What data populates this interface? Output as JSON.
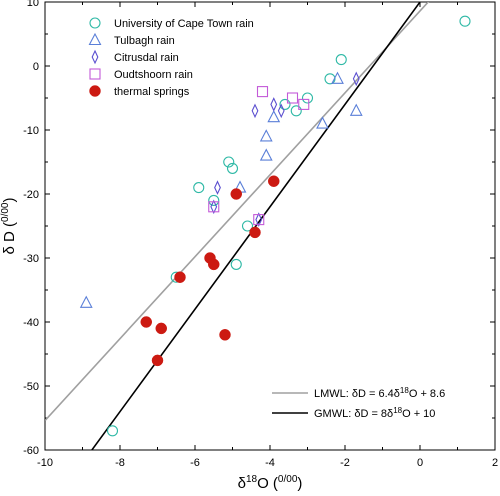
{
  "chart_data": {
    "type": "scatter",
    "xlabel_main": "δ",
    "xlabel_sup": "18",
    "xlabel_tail": "O (",
    "xlabel_unit": "0/00",
    "xlabel_close": ")",
    "ylabel_main": "δ D (",
    "ylabel_unit": "0/00",
    "ylabel_close": ")",
    "xlim": [
      -10,
      2
    ],
    "ylim": [
      -60,
      10
    ],
    "xticks": [
      -10,
      -8,
      -6,
      -4,
      -2,
      0,
      2
    ],
    "yticks": [
      -60,
      -50,
      -40,
      -30,
      -20,
      -10,
      0,
      10
    ],
    "grid": false,
    "legend_position": "top-left",
    "lines_legend_position": "bottom-right",
    "series": [
      {
        "name": "University of Cape Town rain",
        "marker": "circle-open",
        "color": "#2fb9a6",
        "points": [
          [
            1.2,
            7
          ],
          [
            -2.1,
            1
          ],
          [
            -2.4,
            -2
          ],
          [
            -3.6,
            -6
          ],
          [
            -3.3,
            -7
          ],
          [
            -3.0,
            -5
          ],
          [
            -5.1,
            -15
          ],
          [
            -5.0,
            -16
          ],
          [
            -5.9,
            -19
          ],
          [
            -5.5,
            -21
          ],
          [
            -4.6,
            -25
          ],
          [
            -4.9,
            -31
          ],
          [
            -6.5,
            -33
          ],
          [
            -8.2,
            -57
          ]
        ]
      },
      {
        "name": "Tulbagh rain",
        "marker": "triangle-open",
        "color": "#5a7fd8",
        "points": [
          [
            -2.2,
            -2
          ],
          [
            -3.9,
            -8
          ],
          [
            -1.7,
            -7
          ],
          [
            -2.6,
            -9
          ],
          [
            -4.1,
            -11
          ],
          [
            -4.1,
            -14
          ],
          [
            -4.8,
            -19
          ],
          [
            -8.9,
            -37
          ]
        ]
      },
      {
        "name": "Citrusdal rain",
        "marker": "diamond-open",
        "color": "#5b4fd0",
        "points": [
          [
            -1.7,
            -2
          ],
          [
            -3.7,
            -7
          ],
          [
            -4.4,
            -7
          ],
          [
            -3.9,
            -6
          ],
          [
            -5.4,
            -19
          ],
          [
            -5.5,
            -22
          ],
          [
            -4.3,
            -24
          ]
        ]
      },
      {
        "name": "Oudtshoorn rain",
        "marker": "square-open",
        "color": "#c35ad8",
        "points": [
          [
            -4.2,
            -4
          ],
          [
            -3.4,
            -5
          ],
          [
            -3.1,
            -6
          ],
          [
            -5.5,
            -22
          ],
          [
            -4.3,
            -24
          ]
        ]
      },
      {
        "name": "thermal springs",
        "marker": "circle-filled",
        "color": "#cc1a12",
        "points": [
          [
            -4.9,
            -20
          ],
          [
            -3.9,
            -18
          ],
          [
            -4.4,
            -26
          ],
          [
            -5.6,
            -30
          ],
          [
            -5.5,
            -31
          ],
          [
            -6.4,
            -33
          ],
          [
            -7.3,
            -40
          ],
          [
            -6.9,
            -41
          ],
          [
            -5.2,
            -42
          ],
          [
            -7.0,
            -46
          ]
        ]
      }
    ],
    "lines": [
      {
        "name": "LMWL",
        "label_main": "LMWL: δD = 6.4δ",
        "label_sup": "18",
        "label_tail": "O + 8.6",
        "slope": 6.4,
        "intercept": 8.6,
        "color": "#a0a0a0"
      },
      {
        "name": "GMWL",
        "label_main": "GMWL: δD = 8δ",
        "label_sup": "18",
        "label_tail": "O + 10",
        "slope": 8,
        "intercept": 10,
        "color": "#000000"
      }
    ]
  }
}
